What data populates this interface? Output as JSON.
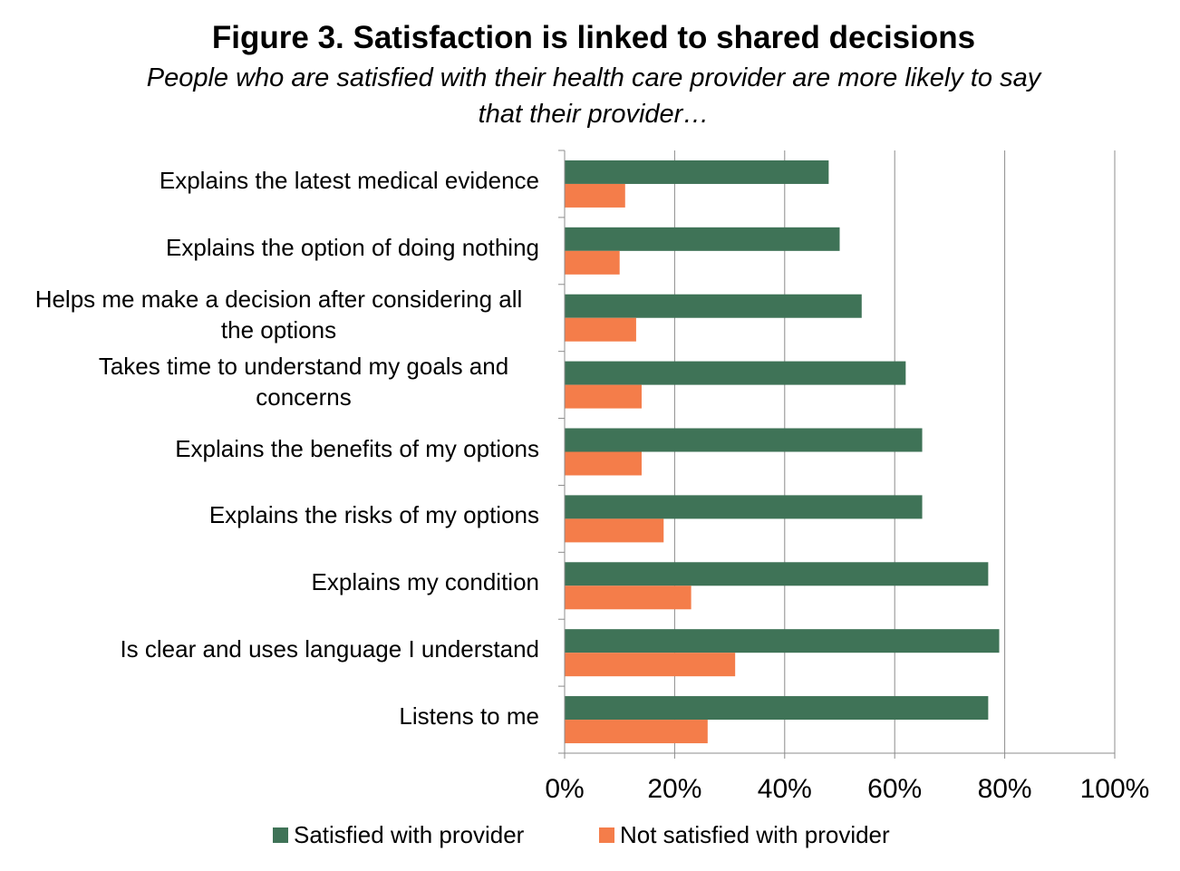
{
  "chart_data": {
    "type": "bar",
    "orientation": "horizontal",
    "title": "Figure 3. Satisfaction is linked to shared decisions",
    "subtitle": "People who are satisfied with their health care provider are more likely to say that their provider…",
    "categories": [
      "Explains the latest medical evidence",
      "Explains the option of doing nothing",
      "Helps me make a decision after considering all the options",
      "Takes time to understand my goals and concerns",
      "Explains the benefits of my options",
      "Explains the risks of my options",
      "Explains my condition",
      "Is clear and uses language I understand",
      "Listens to me"
    ],
    "series": [
      {
        "name": "Satisfied with provider",
        "color": "#3f7357",
        "values": [
          48,
          50,
          54,
          62,
          65,
          65,
          77,
          79,
          77
        ]
      },
      {
        "name": "Not satisfied with provider",
        "color": "#f47d4a",
        "values": [
          11,
          10,
          13,
          14,
          14,
          18,
          23,
          31,
          26
        ]
      }
    ],
    "xlim": [
      0,
      100
    ],
    "xticks": [
      "0%",
      "20%",
      "40%",
      "60%",
      "80%",
      "100%"
    ],
    "grid": true,
    "legend_position": "bottom"
  }
}
